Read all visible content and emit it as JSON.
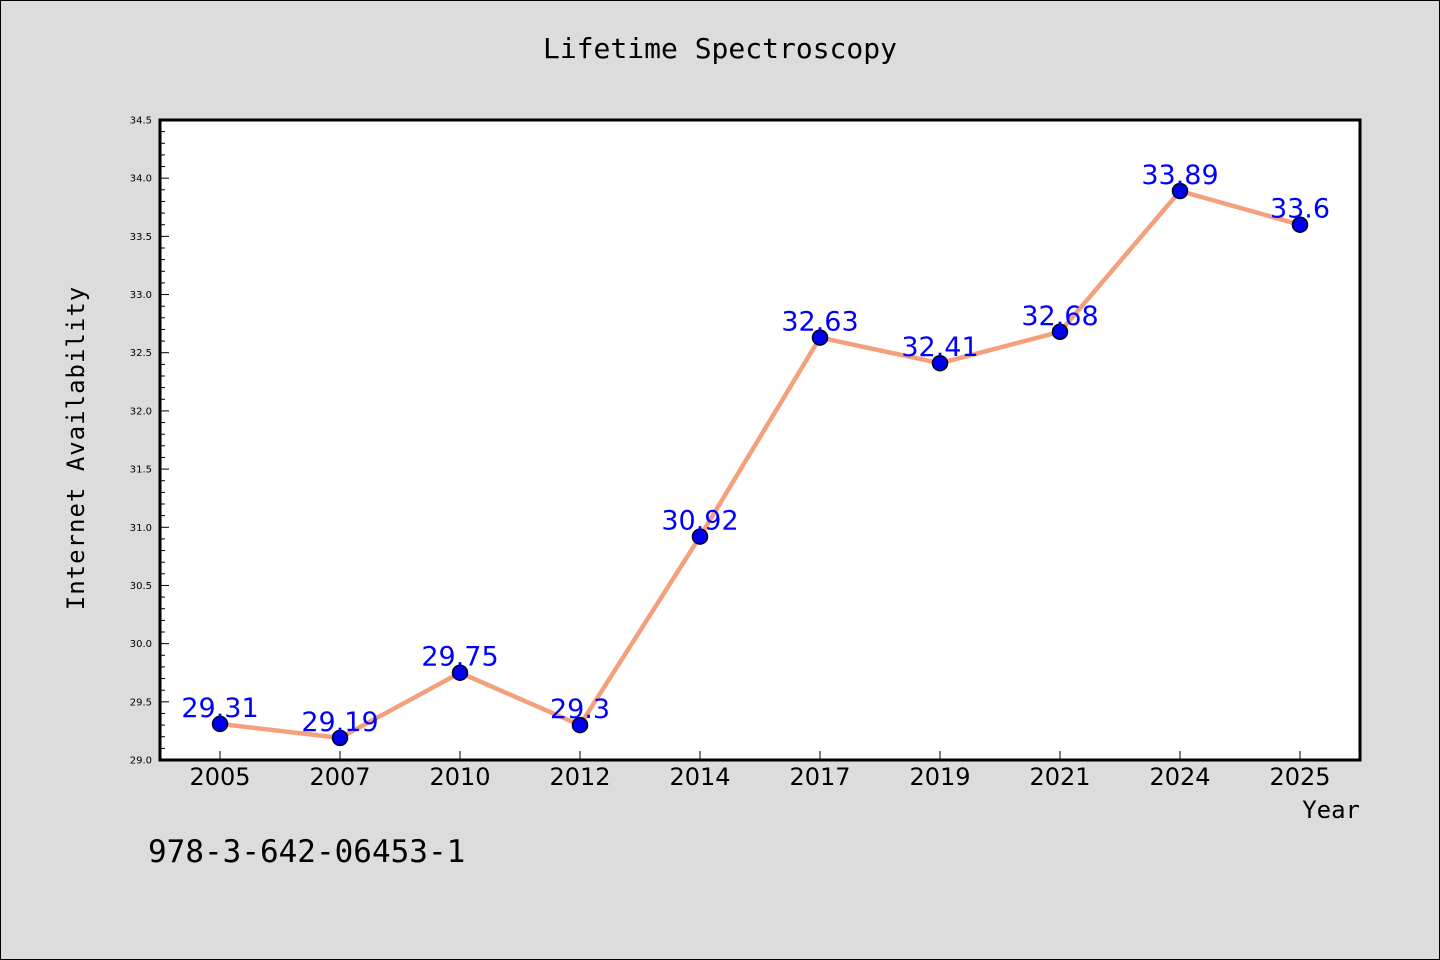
{
  "chart_data": {
    "type": "line",
    "title": "Lifetime Spectroscopy",
    "xlabel": "Year",
    "ylabel": "Internet Availability",
    "categories": [
      "2005",
      "2007",
      "2010",
      "2012",
      "2014",
      "2017",
      "2019",
      "2021",
      "2024",
      "2025"
    ],
    "series": [
      {
        "values": [
          29.31,
          29.19,
          29.75,
          29.3,
          30.92,
          32.63,
          32.41,
          32.68,
          33.89,
          33.6
        ],
        "labels": [
          "29.31",
          "29.19",
          "29.75",
          "29.3",
          "30.92",
          "32.63",
          "32.41",
          "32.68",
          "33.89",
          "33.6"
        ]
      }
    ],
    "ylim": [
      29.0,
      34.5
    ],
    "yticks": [
      "29.0",
      "29.5",
      "30.0",
      "30.5",
      "31.0",
      "31.5",
      "32.0",
      "32.5",
      "33.0",
      "33.5",
      "34.0",
      "34.5"
    ],
    "grid": false,
    "legend": "none",
    "colors": {
      "line": "#f4a07c",
      "marker": "#0000ee",
      "data_label": "#0000ff",
      "background": "#dcdcdc",
      "plot_area": "#ffffff"
    }
  },
  "footer": {
    "isbn": "978-3-642-06453-1"
  }
}
